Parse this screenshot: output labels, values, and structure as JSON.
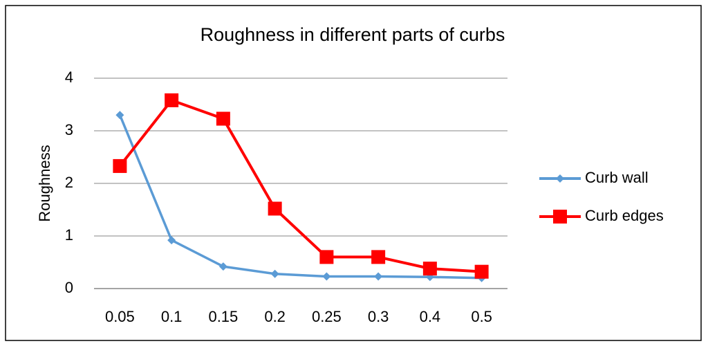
{
  "chart_data": {
    "type": "line",
    "title": "Roughness in different parts of curbs",
    "y_label": "Roughness",
    "categories": [
      "0.05",
      "0.1",
      "0.15",
      "0.2",
      "0.25",
      "0.3",
      "0.4",
      "0.5"
    ],
    "series": [
      {
        "name": "Curb wall",
        "color": "#5b9bd5",
        "marker": "diamond",
        "values": [
          3.3,
          0.92,
          0.42,
          0.28,
          0.23,
          0.23,
          0.22,
          0.2
        ]
      },
      {
        "name": "Curb edges",
        "color": "#ff0000",
        "marker": "square",
        "values": [
          2.33,
          3.58,
          3.23,
          1.52,
          0.6,
          0.6,
          0.38,
          0.32
        ]
      }
    ],
    "ylim": [
      0,
      4
    ],
    "yticks": [
      0,
      1,
      2,
      3,
      4
    ],
    "grid": true,
    "legend": "right"
  }
}
